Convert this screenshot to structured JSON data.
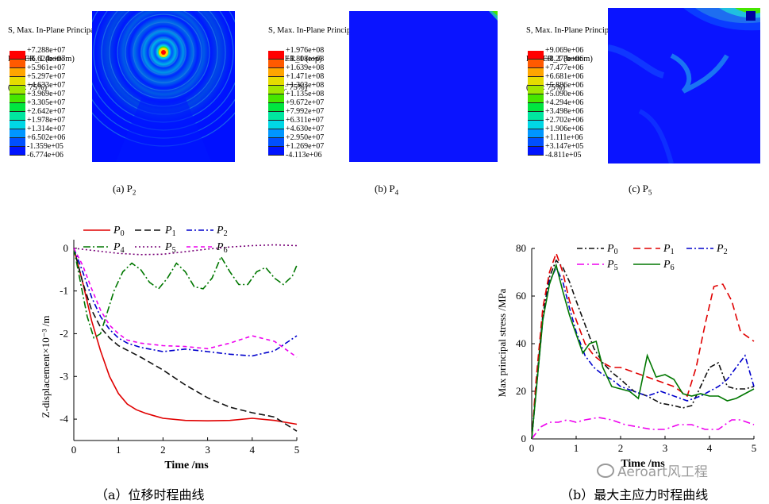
{
  "contour_panels": [
    {
      "title_lines": [
        "S, Max. In-Plane Principal",
        "LAYER_1 (bottom)",
        "(Avg: 75%)"
      ],
      "legend": [
        "+7.288e+07",
        "+6.624e+07",
        "+5.961e+07",
        "+5.297e+07",
        "+4.633e+07",
        "+3.969e+07",
        "+3.305e+07",
        "+2.642e+07",
        "+1.978e+07",
        "+1.314e+07",
        "+6.502e+06",
        "-1.359e+05",
        "-6.774e+06"
      ],
      "caption": "(a) P",
      "caption_sub": "2"
    },
    {
      "title_lines": [
        "S, Max. In-Plane Principal",
        "LAYER_1 (top)",
        "(Avg: 75%)"
      ],
      "legend": [
        "+1.976e+08",
        "+1.808e+08",
        "+1.639e+08",
        "+1.471e+08",
        "+1.303e+08",
        "+1.135e+08",
        "+9.672e+07",
        "+7.992e+07",
        "+6.311e+07",
        "+4.630e+07",
        "+2.950e+07",
        "+1.269e+07",
        "-4.113e+06"
      ],
      "caption": "(b) P",
      "caption_sub": "4"
    },
    {
      "title_lines": [
        "S, Max. In-Plane Principal",
        "LAYER_1 (bottom)",
        "(Avg: 75%)"
      ],
      "legend": [
        "+9.069e+06",
        "+8.273e+06",
        "+7.477e+06",
        "+6.681e+06",
        "+5.886e+06",
        "+5.090e+06",
        "+4.294e+06",
        "+3.498e+06",
        "+2.702e+06",
        "+1.906e+06",
        "+1.111e+06",
        "+3.147e+05",
        "-4.811e+05"
      ],
      "caption": "(c) P",
      "caption_sub": "5"
    }
  ],
  "legend_colors": [
    "#ff0000",
    "#ff5a00",
    "#ffa500",
    "#e6dc00",
    "#a0e600",
    "#46e600",
    "#00e640",
    "#00e6a0",
    "#00d7e6",
    "#0096ff",
    "#0050ff",
    "#0014ff",
    "#0000b4"
  ],
  "chart_data": [
    {
      "type": "line",
      "title": "",
      "caption": "（a）位移时程曲线",
      "xlabel": "Time /ms",
      "ylabel": "Z-displacement×10⁻³ /m",
      "xlim": [
        0,
        5
      ],
      "ylim": [
        -4.5,
        0.2
      ],
      "xticks": [
        0,
        1,
        2,
        3,
        4,
        5
      ],
      "yticks": [
        0,
        -1,
        -2,
        -3,
        -4
      ],
      "grid": false,
      "series": [
        {
          "name": "P",
          "sub": "0",
          "color": "#e00000",
          "dash": "",
          "x": [
            0,
            0.2,
            0.4,
            0.6,
            0.8,
            1.0,
            1.2,
            1.4,
            1.6,
            1.8,
            2.0,
            2.5,
            3.0,
            3.5,
            4.0,
            4.5,
            5.0
          ],
          "y": [
            0,
            -0.8,
            -1.7,
            -2.4,
            -3.0,
            -3.4,
            -3.65,
            -3.78,
            -3.86,
            -3.92,
            -3.98,
            -4.03,
            -4.04,
            -4.03,
            -3.98,
            -4.03,
            -4.12
          ]
        },
        {
          "name": "P",
          "sub": "1",
          "color": "#111111",
          "dash": "8,4",
          "x": [
            0,
            0.2,
            0.4,
            0.6,
            0.8,
            1.0,
            1.5,
            2.0,
            2.5,
            3.0,
            3.5,
            4.0,
            4.5,
            5.0
          ],
          "y": [
            0,
            -0.8,
            -1.45,
            -1.85,
            -2.1,
            -2.28,
            -2.55,
            -2.85,
            -3.2,
            -3.5,
            -3.72,
            -3.85,
            -3.95,
            -4.28
          ]
        },
        {
          "name": "P",
          "sub": "2",
          "color": "#0000cc",
          "dash": "7,3,2,3",
          "x": [
            0,
            0.2,
            0.4,
            0.6,
            0.8,
            1.0,
            1.2,
            1.5,
            2.0,
            2.5,
            3.0,
            3.5,
            4.0,
            4.5,
            5.0
          ],
          "y": [
            0,
            -0.55,
            -1.15,
            -1.6,
            -1.9,
            -2.1,
            -2.22,
            -2.32,
            -2.42,
            -2.36,
            -2.42,
            -2.48,
            -2.52,
            -2.4,
            -2.05
          ]
        },
        {
          "name": "P",
          "sub": "4",
          "color": "#007700",
          "dash": "9,3,2,3",
          "x": [
            0,
            0.15,
            0.3,
            0.45,
            0.6,
            0.75,
            0.9,
            1.1,
            1.3,
            1.5,
            1.7,
            1.9,
            2.1,
            2.3,
            2.5,
            2.7,
            2.9,
            3.1,
            3.3,
            3.5,
            3.7,
            3.9,
            4.1,
            4.3,
            4.5,
            4.7,
            4.9,
            5.0
          ],
          "y": [
            0,
            -0.8,
            -1.6,
            -2.1,
            -2.0,
            -1.5,
            -1.0,
            -0.55,
            -0.35,
            -0.5,
            -0.8,
            -0.95,
            -0.7,
            -0.35,
            -0.55,
            -0.9,
            -0.95,
            -0.7,
            -0.2,
            -0.55,
            -0.85,
            -0.85,
            -0.55,
            -0.45,
            -0.7,
            -0.85,
            -0.65,
            -0.4
          ]
        },
        {
          "name": "P",
          "sub": "5",
          "color": "#770077",
          "dash": "2,3",
          "x": [
            0,
            0.5,
            1.0,
            1.5,
            2.0,
            2.5,
            3.0,
            3.5,
            4.0,
            4.5,
            5.0
          ],
          "y": [
            0,
            -0.06,
            -0.12,
            -0.15,
            -0.14,
            -0.08,
            -0.02,
            0.03,
            0.06,
            0.08,
            0.06
          ]
        },
        {
          "name": "P",
          "sub": "6",
          "color": "#ee00ee",
          "dash": "5,4",
          "x": [
            0,
            0.2,
            0.4,
            0.6,
            0.8,
            1.0,
            1.2,
            1.5,
            2.0,
            2.5,
            3.0,
            3.5,
            4.0,
            4.5,
            5.0
          ],
          "y": [
            0,
            -0.4,
            -0.95,
            -1.45,
            -1.8,
            -2.0,
            -2.15,
            -2.22,
            -2.28,
            -2.3,
            -2.35,
            -2.22,
            -2.05,
            -2.18,
            -2.55
          ]
        }
      ]
    },
    {
      "type": "line",
      "title": "",
      "caption": "（b）最大主应力时程曲线",
      "xlabel": "Time /ms",
      "ylabel": "Max principal stress /MPa",
      "xlim": [
        0,
        5
      ],
      "ylim": [
        0,
        80
      ],
      "xticks": [
        0,
        1,
        2,
        3,
        4,
        5
      ],
      "yticks": [
        0,
        20,
        40,
        60,
        80
      ],
      "grid": false,
      "series": [
        {
          "name": "P",
          "sub": "0",
          "color": "#111111",
          "dash": "7,3,2,3",
          "x": [
            0,
            0.1,
            0.25,
            0.4,
            0.55,
            0.7,
            0.85,
            1.0,
            1.2,
            1.4,
            1.6,
            1.8,
            2.0,
            2.3,
            2.6,
            2.9,
            3.2,
            3.4,
            3.6,
            3.8,
            4.0,
            4.2,
            4.4,
            4.6,
            4.8,
            5.0
          ],
          "y": [
            0,
            22,
            52,
            68,
            75,
            72,
            66,
            58,
            48,
            38,
            32,
            28,
            25,
            20,
            18,
            15,
            14,
            13,
            14,
            22,
            30,
            32,
            22,
            21,
            21,
            22
          ]
        },
        {
          "name": "P",
          "sub": "1",
          "color": "#e00000",
          "dash": "9,5",
          "x": [
            0,
            0.1,
            0.25,
            0.4,
            0.55,
            0.7,
            0.85,
            1.0,
            1.2,
            1.4,
            1.6,
            1.8,
            2.0,
            2.3,
            2.6,
            2.9,
            3.2,
            3.5,
            3.7,
            3.9,
            4.1,
            4.3,
            4.5,
            4.7,
            5.0
          ],
          "y": [
            0,
            25,
            55,
            70,
            78,
            70,
            58,
            50,
            40,
            35,
            32,
            30,
            30,
            28,
            26,
            24,
            22,
            18,
            30,
            48,
            64,
            65,
            58,
            45,
            41
          ]
        },
        {
          "name": "P",
          "sub": "2",
          "color": "#0000cc",
          "dash": "7,3,2,3",
          "x": [
            0,
            0.1,
            0.25,
            0.4,
            0.55,
            0.7,
            0.85,
            1.0,
            1.2,
            1.4,
            1.6,
            1.8,
            2.0,
            2.3,
            2.6,
            2.9,
            3.2,
            3.5,
            3.8,
            4.0,
            4.2,
            4.4,
            4.6,
            4.8,
            5.0
          ],
          "y": [
            0,
            20,
            50,
            66,
            72,
            66,
            55,
            45,
            35,
            30,
            27,
            25,
            22,
            20,
            18,
            20,
            18,
            16,
            18,
            20,
            22,
            25,
            30,
            35,
            22
          ]
        },
        {
          "name": "P",
          "sub": "5",
          "color": "#ee00ee",
          "dash": "9,4,2,4",
          "x": [
            0,
            0.2,
            0.4,
            0.6,
            0.8,
            1.0,
            1.2,
            1.5,
            1.8,
            2.1,
            2.4,
            2.7,
            3.0,
            3.3,
            3.6,
            3.9,
            4.2,
            4.5,
            4.7,
            5.0
          ],
          "y": [
            0,
            5,
            7,
            7,
            8,
            7,
            8,
            9,
            8,
            6,
            5,
            4,
            4,
            6,
            6,
            4,
            4,
            8,
            8,
            6
          ]
        },
        {
          "name": "P",
          "sub": "6",
          "color": "#007700",
          "dash": "",
          "x": [
            0,
            0.1,
            0.25,
            0.4,
            0.55,
            0.7,
            0.85,
            1.0,
            1.15,
            1.3,
            1.45,
            1.6,
            1.8,
            2.0,
            2.2,
            2.4,
            2.6,
            2.8,
            3.0,
            3.2,
            3.4,
            3.6,
            3.8,
            4.0,
            4.2,
            4.4,
            4.6,
            4.8,
            5.0
          ],
          "y": [
            0,
            20,
            50,
            65,
            73,
            62,
            52,
            44,
            36,
            40,
            41,
            30,
            22,
            21,
            20,
            17,
            35,
            26,
            27,
            25,
            19,
            18,
            19,
            18,
            18,
            16,
            17,
            19,
            21
          ]
        }
      ]
    }
  ],
  "watermark": "Aeroart风工程"
}
